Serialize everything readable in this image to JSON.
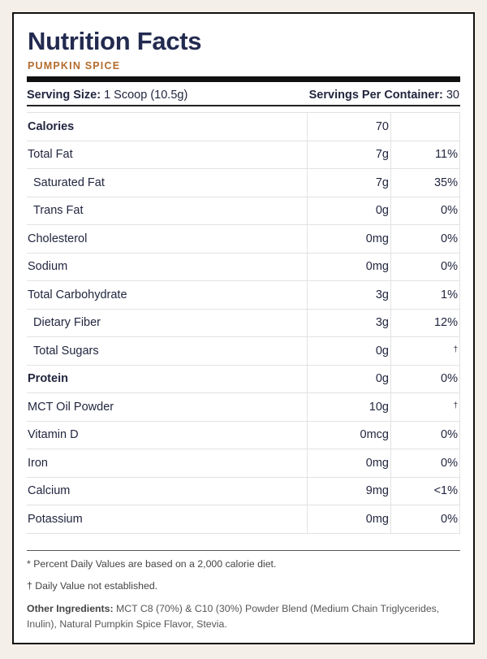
{
  "header": {
    "title": "Nutrition Facts",
    "subtitle": "PUMPKIN SPICE"
  },
  "serving": {
    "size_label": "Serving Size:",
    "size": "1 Scoop (10.5g)",
    "per_container_label": "Servings Per Container:",
    "per_container": "30"
  },
  "table": {
    "rows": [
      {
        "name": "Calories",
        "amount": "70",
        "bold": true
      },
      {
        "name": "Total Fat",
        "amount": "7g",
        "dv": "11%"
      },
      {
        "name": "Saturated Fat",
        "amount": "7g",
        "dv": "35%",
        "indent": true
      },
      {
        "name": "Trans Fat",
        "amount": "0g",
        "dv": "0%",
        "indent": true
      },
      {
        "name": "Cholesterol",
        "amount": "0mg",
        "dv": "0%"
      },
      {
        "name": "Sodium",
        "amount": "0mg",
        "dv": "0%"
      },
      {
        "name": "Total Carbohydrate",
        "amount": "3g",
        "dv": "1%"
      },
      {
        "name": "Dietary Fiber",
        "amount": "3g",
        "dv": "12%",
        "indent": true
      },
      {
        "name": "Total Sugars",
        "amount": "0g",
        "dv": "†",
        "indent": true
      },
      {
        "name": "Protein",
        "amount": "0g",
        "dv": "0%",
        "bold": true
      },
      {
        "name": "MCT Oil Powder",
        "amount": "10g",
        "dv": "†"
      },
      {
        "name": "Vitamin D",
        "amount": "0mcg",
        "dv": "0%"
      },
      {
        "name": "Iron",
        "amount": "0mg",
        "dv": "0%"
      },
      {
        "name": "Calcium",
        "amount": "9mg",
        "dv": "<1%"
      },
      {
        "name": "Potassium",
        "amount": "0mg",
        "dv": "0%"
      }
    ]
  },
  "footnotes": [
    "* Percent Daily Values are based on a 2,000 calorie diet.",
    "† Daily Value not established."
  ],
  "ingredients": {
    "label": "Other Ingredients:",
    "text": "MCT C8 (70%) & C10 (30%) Powder Blend (Medium Chain Triglycerides, Inulin), Natural Pumpkin Spice Flavor, Stevia."
  }
}
